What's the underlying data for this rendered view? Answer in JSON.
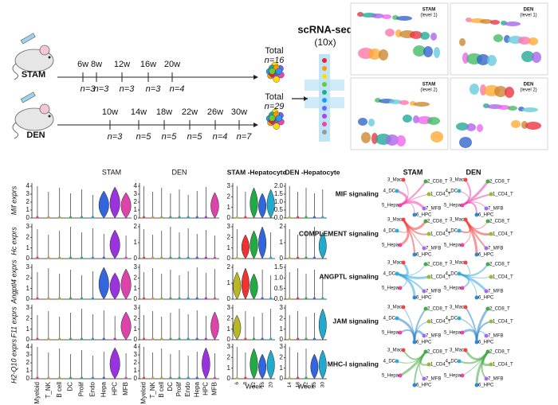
{
  "top": {
    "stam": {
      "label": "STAM",
      "weeks": [
        "6w",
        "8w",
        "12w",
        "16w",
        "20w"
      ],
      "n": [
        "n=3",
        "n=3",
        "n=3",
        "n=3",
        "n=4"
      ],
      "total": "Total",
      "total_n": "n=16"
    },
    "den": {
      "label": "DEN",
      "weeks": [
        "10w",
        "14w",
        "18w",
        "22w",
        "26w",
        "30w"
      ],
      "n": [
        "n=3",
        "n=5",
        "n=5",
        "n=5",
        "n=4",
        "n=7"
      ],
      "total": "Total",
      "total_n": "n=29"
    },
    "method": "scRNA-seq",
    "method_sub": "(10x)",
    "umaps": [
      {
        "title": "STAM",
        "subtitle": "(level 1)"
      },
      {
        "title": "DEN",
        "subtitle": "(level 1)"
      },
      {
        "title": "STAM",
        "subtitle": "(level 2)"
      },
      {
        "title": "DEN",
        "subtitle": "(level 2)"
      }
    ]
  },
  "violin": {
    "columns": [
      "STAM",
      "DEN",
      "STAM -Hepatocyte",
      "DEN -Hepatocyte"
    ],
    "rows": [
      {
        "gene": "Mif exprs",
        "ticks": [
          [
            "0",
            "1",
            "2",
            "3",
            "4"
          ],
          [
            "0",
            "1",
            "2",
            "3",
            "4"
          ],
          [
            "0",
            "1",
            "2",
            "3"
          ],
          [
            "0.0",
            "0.5",
            "1.0",
            "1.5",
            "2.0"
          ]
        ]
      },
      {
        "gene": "Hc exprs",
        "ticks": [
          [
            "0",
            "1",
            "2",
            "3"
          ],
          [
            "0",
            "1",
            "2"
          ],
          [
            "0",
            "1",
            "2",
            "3"
          ],
          [
            "0",
            "1",
            "2"
          ]
        ]
      },
      {
        "gene": "Angptl4 exprs",
        "ticks": [
          [
            "0",
            "1",
            "2",
            "3"
          ],
          [
            "0",
            "1",
            "2",
            "3"
          ],
          [
            "0",
            "1",
            "2"
          ],
          [
            "0.0",
            "0.5",
            "1.0",
            "1.5"
          ]
        ]
      },
      {
        "gene": "F11 exprs",
        "ticks": [
          [
            "0",
            "1",
            "2",
            "3"
          ],
          [
            "0",
            "1",
            "2",
            "3"
          ],
          [
            "0",
            "1",
            "2",
            "3"
          ],
          [
            "0",
            "1",
            "2",
            "3"
          ]
        ]
      },
      {
        "gene": "H2-Q10 exprs",
        "ticks": [
          [
            "0",
            "1",
            "2",
            "3",
            "4"
          ],
          [
            "0",
            "1",
            "2",
            "3",
            "4"
          ],
          [
            "0",
            "1",
            "2",
            "3"
          ],
          [
            "0",
            "1",
            "2",
            "3"
          ]
        ]
      }
    ],
    "cell_types": [
      "Myeloid",
      "T_NK",
      "B cell",
      "DC",
      "Prolif",
      "Endo",
      "Hepa",
      "HPC",
      "MFB"
    ],
    "stam_weeks": [
      "6",
      "8",
      "12",
      "16",
      "20"
    ],
    "den_weeks": [
      "14",
      "18",
      "22",
      "26",
      "30"
    ],
    "week_label": "Week"
  },
  "network": {
    "columns": [
      "STAM",
      "DEN"
    ],
    "pathways": [
      "MIF signaling",
      "COMPLEMENT signaling",
      "ANGPTL signaling",
      "JAM signaling",
      "MHC-I signaling"
    ],
    "nodes": [
      "3_Mac",
      "2_CD8_T",
      "4_DC",
      "1_CD4_T",
      "5_Hepa",
      "7_MFB",
      "6_HPC"
    ]
  }
}
